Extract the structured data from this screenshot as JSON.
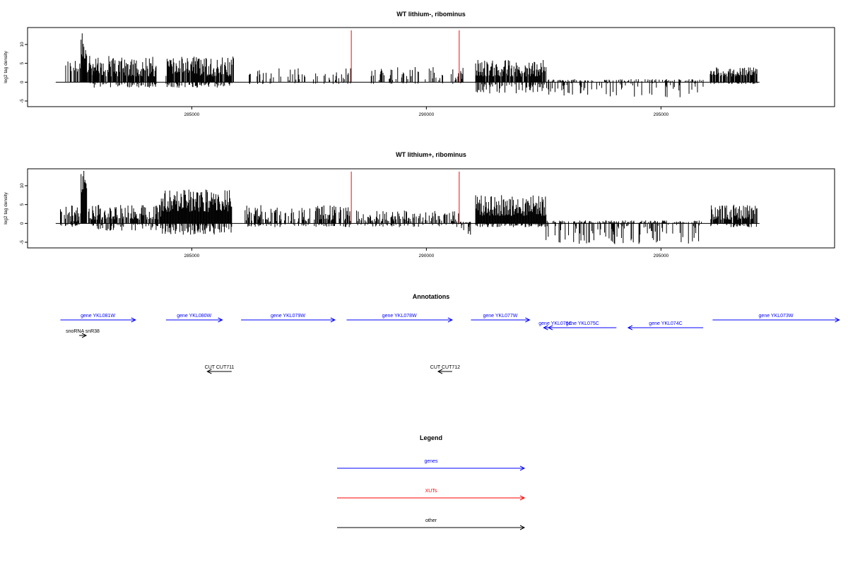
{
  "chart_data": {
    "type": "bar",
    "panels": [
      {
        "title": "WT lithium-, ribominus",
        "ylabel": "log2 tag density",
        "ylim": [
          -6.5,
          14.5
        ],
        "yticks": [
          -5,
          0,
          5,
          10
        ],
        "xlim": [
          281500,
          298700
        ],
        "xticks": [
          285000,
          290000,
          295000
        ],
        "baseline": [
          282100,
          297100
        ],
        "segments": [
          {
            "start": 282300,
            "end": 283000,
            "min_pos": 2.5,
            "max_pos": 6,
            "max_neg": 0,
            "density": 0.5
          },
          {
            "start": 282640,
            "end": 282760,
            "min_pos": 6,
            "max_pos": 13,
            "max_neg": 0,
            "density": 1.0
          },
          {
            "start": 282800,
            "end": 284250,
            "min_pos": 1.5,
            "max_pos": 7,
            "max_neg": -1.5,
            "density": 0.9
          },
          {
            "start": 284450,
            "end": 285900,
            "min_pos": 1.5,
            "max_pos": 7,
            "max_neg": -1.5,
            "density": 0.9
          },
          {
            "start": 286200,
            "end": 288400,
            "min_pos": 0.5,
            "max_pos": 4,
            "max_neg": -0.5,
            "density": 0.25
          },
          {
            "start": 288800,
            "end": 290800,
            "min_pos": 0.5,
            "max_pos": 4,
            "max_neg": -0.5,
            "density": 0.35
          },
          {
            "start": 291050,
            "end": 292550,
            "min_pos": 1.5,
            "max_pos": 6,
            "max_neg": -3,
            "density": 0.9
          },
          {
            "start": 292550,
            "end": 295900,
            "min_pos": 0,
            "max_pos": 0.8,
            "max_neg": -4,
            "density": 0.45
          },
          {
            "start": 296050,
            "end": 297050,
            "min_pos": 1.5,
            "max_pos": 4,
            "max_neg": -0.5,
            "density": 0.9
          }
        ],
        "xut_markers": [
          288400,
          290700
        ]
      },
      {
        "title": "WT lithium+, ribominus",
        "ylabel": "log2 tag density",
        "ylim": [
          -6.5,
          14.5
        ],
        "yticks": [
          -5,
          0,
          5,
          10
        ],
        "xlim": [
          281500,
          298700
        ],
        "xticks": [
          285000,
          290000,
          295000
        ],
        "baseline": [
          282100,
          297100
        ],
        "segments": [
          {
            "start": 282200,
            "end": 282700,
            "min_pos": 0.5,
            "max_pos": 5,
            "max_neg": -1,
            "density": 0.6
          },
          {
            "start": 282640,
            "end": 282760,
            "min_pos": 6,
            "max_pos": 14,
            "max_neg": 0,
            "density": 1.0
          },
          {
            "start": 282800,
            "end": 284350,
            "min_pos": 1,
            "max_pos": 5,
            "max_neg": -2,
            "density": 0.8
          },
          {
            "start": 284350,
            "end": 285850,
            "min_pos": 3,
            "max_pos": 9,
            "max_neg": -3,
            "density": 1.0
          },
          {
            "start": 286100,
            "end": 288400,
            "min_pos": 0.5,
            "max_pos": 5,
            "max_neg": -1,
            "density": 0.6
          },
          {
            "start": 288500,
            "end": 290700,
            "min_pos": 0.5,
            "max_pos": 3.5,
            "max_neg": -1,
            "density": 0.5
          },
          {
            "start": 290700,
            "end": 290950,
            "min_pos": 0,
            "max_pos": 0.5,
            "max_neg": -3,
            "density": 0.9
          },
          {
            "start": 291050,
            "end": 292550,
            "min_pos": 2,
            "max_pos": 7.5,
            "max_neg": -1,
            "density": 1.0
          },
          {
            "start": 292550,
            "end": 295900,
            "min_pos": 0,
            "max_pos": 0.8,
            "max_neg": -5.5,
            "density": 0.6
          },
          {
            "start": 296050,
            "end": 297050,
            "min_pos": 1,
            "max_pos": 5,
            "max_neg": -1,
            "density": 0.9
          }
        ],
        "xut_markers": [
          288400,
          290700
        ]
      }
    ]
  },
  "annotations": {
    "title": "Annotations",
    "features": [
      {
        "label": "gene YKL081W",
        "type": "gene",
        "start": 282200,
        "end": 283800,
        "strand": "+",
        "row": 0
      },
      {
        "label": "gene YKL080W",
        "type": "gene",
        "start": 284450,
        "end": 285650,
        "strand": "+",
        "row": 0
      },
      {
        "label": "gene YKL079W",
        "type": "gene",
        "start": 286050,
        "end": 288050,
        "strand": "+",
        "row": 0
      },
      {
        "label": "gene YKL078W",
        "type": "gene",
        "start": 288300,
        "end": 290550,
        "strand": "+",
        "row": 0
      },
      {
        "label": "gene YKL077W",
        "type": "gene",
        "start": 290950,
        "end": 292200,
        "strand": "+",
        "row": 0
      },
      {
        "label": "gene YKL076C",
        "type": "gene",
        "start": 292500,
        "end": 293000,
        "strand": "-",
        "row": 1
      },
      {
        "label": "gene YKL075C",
        "type": "gene",
        "start": 292600,
        "end": 294050,
        "strand": "-",
        "row": 1
      },
      {
        "label": "gene YKL074C",
        "type": "gene",
        "start": 294300,
        "end": 295900,
        "strand": "-",
        "row": 1
      },
      {
        "label": "gene YKL073W",
        "type": "gene",
        "start": 296100,
        "end": 298800,
        "strand": "+",
        "row": 0
      },
      {
        "label": "snoRNA snR38",
        "type": "other",
        "start": 282600,
        "end": 282750,
        "strand": "+",
        "row": 2
      },
      {
        "label": "CUT CUT711",
        "type": "other",
        "start": 285330,
        "end": 285850,
        "strand": "-",
        "row": 3
      },
      {
        "label": "CUT CUT712",
        "type": "other",
        "start": 290250,
        "end": 290550,
        "strand": "-",
        "row": 3
      }
    ]
  },
  "legend": {
    "title": "Legend",
    "items": [
      {
        "label": "genes",
        "color": "#0000ff"
      },
      {
        "label": "XUTs",
        "color": "#ff0000"
      },
      {
        "label": "other",
        "color": "#000000"
      }
    ]
  },
  "colors": {
    "gene": "#0000ff",
    "xut": "#ff0000",
    "other": "#000000"
  }
}
